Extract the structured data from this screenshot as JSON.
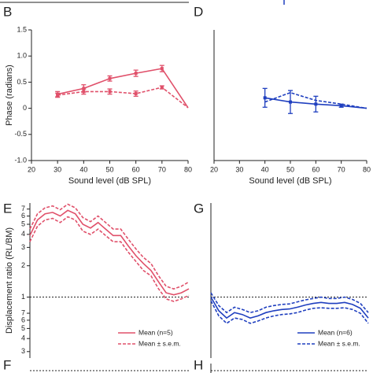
{
  "chart_data": [
    {
      "type": "line",
      "panel": "B",
      "ylabel": "Phase (radians)",
      "xlabel": "Sound level (dB SPL)",
      "x": [
        30,
        40,
        50,
        60,
        70,
        80
      ],
      "xlim": [
        20,
        80
      ],
      "xticks": [
        20,
        30,
        40,
        50,
        60,
        70,
        80
      ],
      "ylim": [
        -1,
        1.5
      ],
      "yticks": [
        {
          "value": -1,
          "label": "-1.0"
        },
        -0.5,
        0,
        0.5,
        {
          "value": 1,
          "label": "1.0"
        },
        1.5
      ],
      "series": [
        {
          "color": "#e0506a",
          "dash": false,
          "values": [
            0.27,
            0.38,
            0.57,
            0.67,
            0.76,
            0.01
          ],
          "errors": [
            0.05,
            0.07,
            0.05,
            0.06,
            0.06,
            null
          ]
        },
        {
          "color": "#e0506a",
          "dash": true,
          "values": [
            0.25,
            0.32,
            0.32,
            0.28,
            0.4,
            0.01
          ],
          "errors": [
            0.04,
            0.05,
            0.05,
            0.05,
            0.03,
            null
          ]
        }
      ]
    },
    {
      "type": "line",
      "panel": "D",
      "xlabel": "Sound level (dB SPL)",
      "x": [
        40,
        50,
        60,
        70,
        80
      ],
      "xlim": [
        20,
        80
      ],
      "xticks": [
        20,
        30,
        40,
        50,
        60,
        70,
        80
      ],
      "ylim": [
        -1,
        1.5
      ],
      "series": [
        {
          "color": "#1f3fbf",
          "dash": false,
          "values": [
            0.2,
            0.12,
            0.08,
            0.05,
            0.0
          ],
          "errors": [
            0.18,
            0.22,
            0.15,
            0.03,
            null
          ]
        },
        {
          "color": "#1f3fbf",
          "dash": true,
          "values": [
            0.12,
            0.3,
            0.15,
            0.08,
            0.0
          ],
          "errors": [
            null,
            null,
            null,
            null,
            null
          ]
        }
      ]
    },
    {
      "type": "logline",
      "panel": "E",
      "ylabel": "Displacement ratio (RL/BM)",
      "ylog": true,
      "ylim": [
        0.26,
        8
      ],
      "reference_line": 1,
      "legend": "lower right",
      "yticks": [
        7,
        6,
        5,
        4,
        3,
        2,
        1,
        {
          "value": 0.7,
          "label": "7"
        },
        {
          "value": 0.6,
          "label": "6"
        },
        {
          "value": 0.5,
          "label": "5"
        },
        {
          "value": 0.4,
          "label": "4"
        },
        {
          "value": 0.3,
          "label": "3"
        }
      ],
      "series": [
        {
          "name": "Mean (n=5)",
          "color": "#e0506a",
          "dash": false,
          "values": [
            3.9,
            5.5,
            6.3,
            6.5,
            6.0,
            6.8,
            6.3,
            5.0,
            4.6,
            5.2,
            4.5,
            3.9,
            3.9,
            3.1,
            2.5,
            2.1,
            1.8,
            1.4,
            1.1,
            1.05,
            1.1,
            1.2
          ]
        },
        {
          "name": "Mean ± s.e.m.",
          "color": "#e0506a",
          "dash": true,
          "values": [
            4.5,
            6.3,
            7.2,
            7.5,
            6.9,
            7.8,
            7.2,
            5.8,
            5.3,
            6.0,
            5.2,
            4.5,
            4.5,
            3.6,
            2.9,
            2.4,
            2.1,
            1.6,
            1.27,
            1.2,
            1.27,
            1.4
          ]
        },
        {
          "color": "#e0506a",
          "dash": true,
          "values": [
            3.4,
            4.8,
            5.5,
            5.7,
            5.2,
            5.9,
            5.5,
            4.3,
            4.0,
            4.5,
            3.9,
            3.4,
            3.4,
            2.7,
            2.2,
            1.8,
            1.6,
            1.2,
            0.96,
            0.91,
            0.96,
            1.04
          ]
        }
      ]
    },
    {
      "type": "logline",
      "panel": "G",
      "ylog": true,
      "ylim": [
        0.26,
        8
      ],
      "reference_line": 1,
      "legend": "lower right",
      "series": [
        {
          "name": "Mean (n=6)",
          "color": "#1f3fbf",
          "dash": false,
          "values": [
            1.0,
            0.74,
            0.63,
            0.71,
            0.68,
            0.63,
            0.66,
            0.71,
            0.74,
            0.76,
            0.77,
            0.8,
            0.84,
            0.87,
            0.89,
            0.87,
            0.87,
            0.89,
            0.85,
            0.78,
            0.63
          ]
        },
        {
          "name": "Mean ± s.e.m.",
          "color": "#1f3fbf",
          "dash": true,
          "values": [
            1.1,
            0.83,
            0.71,
            0.8,
            0.76,
            0.71,
            0.74,
            0.8,
            0.83,
            0.85,
            0.86,
            0.9,
            0.94,
            0.97,
            1.0,
            0.97,
            0.97,
            1.0,
            0.95,
            0.87,
            0.71
          ]
        },
        {
          "color": "#1f3fbf",
          "dash": true,
          "values": [
            0.92,
            0.66,
            0.56,
            0.63,
            0.61,
            0.56,
            0.59,
            0.63,
            0.66,
            0.68,
            0.69,
            0.71,
            0.75,
            0.78,
            0.79,
            0.78,
            0.78,
            0.79,
            0.76,
            0.7,
            0.56
          ]
        }
      ]
    }
  ],
  "extra_panels": [
    "F",
    "H"
  ]
}
